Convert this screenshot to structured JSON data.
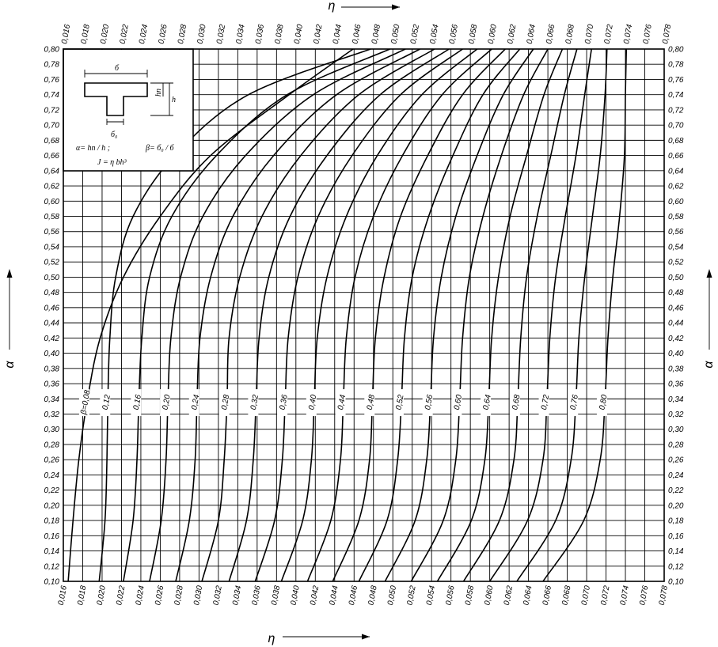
{
  "chart_data": {
    "type": "line",
    "x_axis": {
      "symbol": "η",
      "range": [
        0.016,
        0.078
      ],
      "step": 0.002,
      "tick_labels": [
        "0,016",
        "0,018",
        "0,020",
        "0,022",
        "0,024",
        "0,026",
        "0,028",
        "0,030",
        "0,032",
        "0,034",
        "0,036",
        "0,038",
        "0,040",
        "0,042",
        "0,044",
        "0,046",
        "0,048",
        "0,050",
        "0,052",
        "0,054",
        "0,056",
        "0,058",
        "0,060",
        "0,062",
        "0,064",
        "0,066",
        "0,068",
        "0,070",
        "0,072",
        "0,074",
        "0,076",
        "0,078"
      ]
    },
    "y_axis": {
      "symbol": "α",
      "range": [
        0.1,
        0.8
      ],
      "step": 0.02,
      "tick_labels": [
        "0,10",
        "0,12",
        "0,14",
        "0,16",
        "0,18",
        "0,20",
        "0,22",
        "0,24",
        "0,26",
        "0,28",
        "0,30",
        "0,32",
        "0,34",
        "0,36",
        "0,38",
        "0,40",
        "0,42",
        "0,44",
        "0,46",
        "0,48",
        "0,50",
        "0,52",
        "0,54",
        "0,56",
        "0,58",
        "0,60",
        "0,62",
        "0,64",
        "0,66",
        "0,68",
        "0,70",
        "0,72",
        "0,74",
        "0,76",
        "0,78",
        "0,80"
      ]
    },
    "grid": true,
    "series": [
      {
        "name": "β=0,08",
        "label_value": 0.08,
        "x": [
          0.0165,
          0.017,
          0.0176,
          0.0185,
          0.0198,
          0.0222,
          0.026,
          0.0312,
          0.0393,
          0.0459
        ],
        "y": [
          0.1,
          0.18,
          0.26,
          0.34,
          0.42,
          0.5,
          0.58,
          0.66,
          0.74,
          0.8
        ]
      },
      {
        "name": "0,12",
        "label_value": 0.12,
        "x": [
          0.0197,
          0.0203,
          0.0205,
          0.0206,
          0.0208,
          0.0214,
          0.0232,
          0.0275,
          0.0351,
          0.0477
        ],
        "y": [
          0.1,
          0.18,
          0.26,
          0.34,
          0.42,
          0.5,
          0.58,
          0.66,
          0.74,
          0.8
        ]
      },
      {
        "name": "0,16",
        "label_value": 0.16,
        "x": [
          0.0222,
          0.0232,
          0.0236,
          0.0238,
          0.0241,
          0.0249,
          0.0272,
          0.0318,
          0.0391,
          0.0497
        ],
        "y": [
          0.1,
          0.18,
          0.26,
          0.34,
          0.42,
          0.5,
          0.58,
          0.66,
          0.74,
          0.8
        ]
      },
      {
        "name": "0,20",
        "label_value": 0.2,
        "x": [
          0.0249,
          0.0261,
          0.0266,
          0.0268,
          0.0271,
          0.0281,
          0.0304,
          0.0348,
          0.0418,
          0.0513
        ],
        "y": [
          0.1,
          0.18,
          0.26,
          0.34,
          0.42,
          0.5,
          0.58,
          0.66,
          0.74,
          0.8
        ]
      },
      {
        "name": "0,24",
        "label_value": 0.24,
        "x": [
          0.0276,
          0.029,
          0.0296,
          0.0298,
          0.0301,
          0.0312,
          0.0335,
          0.0377,
          0.0442,
          0.0528
        ],
        "y": [
          0.1,
          0.18,
          0.26,
          0.34,
          0.42,
          0.5,
          0.58,
          0.66,
          0.74,
          0.8
        ]
      },
      {
        "name": "0,28",
        "label_value": 0.28,
        "x": [
          0.0303,
          0.032,
          0.0326,
          0.0329,
          0.0331,
          0.0342,
          0.0365,
          0.0405,
          0.0465,
          0.0543
        ],
        "y": [
          0.1,
          0.18,
          0.26,
          0.34,
          0.42,
          0.5,
          0.58,
          0.66,
          0.74,
          0.8
        ]
      },
      {
        "name": "0,32",
        "label_value": 0.32,
        "x": [
          0.0331,
          0.0349,
          0.0356,
          0.0359,
          0.0362,
          0.0372,
          0.0394,
          0.0432,
          0.0487,
          0.0558
        ],
        "y": [
          0.1,
          0.18,
          0.26,
          0.34,
          0.42,
          0.5,
          0.58,
          0.66,
          0.74,
          0.8
        ]
      },
      {
        "name": "0,36",
        "label_value": 0.36,
        "x": [
          0.0358,
          0.0378,
          0.0386,
          0.0389,
          0.0392,
          0.0402,
          0.0423,
          0.0458,
          0.0508,
          0.0572
        ],
        "y": [
          0.1,
          0.18,
          0.26,
          0.34,
          0.42,
          0.5,
          0.58,
          0.66,
          0.74,
          0.8
        ]
      },
      {
        "name": "0,40",
        "label_value": 0.4,
        "x": [
          0.0385,
          0.0407,
          0.0416,
          0.0419,
          0.0422,
          0.0432,
          0.0452,
          0.0484,
          0.053,
          0.0587
        ],
        "y": [
          0.1,
          0.18,
          0.26,
          0.34,
          0.42,
          0.5,
          0.58,
          0.66,
          0.74,
          0.8
        ]
      },
      {
        "name": "0,44",
        "label_value": 0.44,
        "x": [
          0.0412,
          0.0436,
          0.0446,
          0.0449,
          0.0452,
          0.0461,
          0.048,
          0.051,
          0.0551,
          0.0602
        ],
        "y": [
          0.1,
          0.18,
          0.26,
          0.34,
          0.42,
          0.5,
          0.58,
          0.66,
          0.74,
          0.8
        ]
      },
      {
        "name": "0,48",
        "label_value": 0.48,
        "x": [
          0.0438,
          0.0465,
          0.0476,
          0.0479,
          0.0482,
          0.0491,
          0.0508,
          0.0536,
          0.0572,
          0.0616
        ],
        "y": [
          0.1,
          0.18,
          0.26,
          0.34,
          0.42,
          0.5,
          0.58,
          0.66,
          0.74,
          0.8
        ]
      },
      {
        "name": "0,52",
        "label_value": 0.52,
        "x": [
          0.0465,
          0.0494,
          0.0505,
          0.0509,
          0.0512,
          0.052,
          0.0537,
          0.0562,
          0.0593,
          0.0631
        ],
        "y": [
          0.1,
          0.18,
          0.26,
          0.34,
          0.42,
          0.5,
          0.58,
          0.66,
          0.74,
          0.8
        ]
      },
      {
        "name": "0,56",
        "label_value": 0.56,
        "x": [
          0.0492,
          0.0523,
          0.0535,
          0.0539,
          0.0542,
          0.055,
          0.0565,
          0.0587,
          0.0614,
          0.0645
        ],
        "y": [
          0.1,
          0.18,
          0.26,
          0.34,
          0.42,
          0.5,
          0.58,
          0.66,
          0.74,
          0.8
        ]
      },
      {
        "name": "0,60",
        "label_value": 0.6,
        "x": [
          0.0519,
          0.0552,
          0.0565,
          0.0569,
          0.0572,
          0.0579,
          0.0593,
          0.0612,
          0.0635,
          0.066
        ],
        "y": [
          0.1,
          0.18,
          0.26,
          0.34,
          0.42,
          0.5,
          0.58,
          0.66,
          0.74,
          0.8
        ]
      },
      {
        "name": "0,64",
        "label_value": 0.64,
        "x": [
          0.0546,
          0.0581,
          0.0595,
          0.0599,
          0.0602,
          0.0609,
          0.0621,
          0.0638,
          0.0656,
          0.0675
        ],
        "y": [
          0.1,
          0.18,
          0.26,
          0.34,
          0.42,
          0.5,
          0.58,
          0.66,
          0.74,
          0.8
        ]
      },
      {
        "name": "0,68",
        "label_value": 0.68,
        "x": [
          0.0573,
          0.061,
          0.0625,
          0.0629,
          0.0632,
          0.0638,
          0.0649,
          0.0663,
          0.0677,
          0.069
        ],
        "y": [
          0.1,
          0.18,
          0.26,
          0.34,
          0.42,
          0.5,
          0.58,
          0.66,
          0.74,
          0.8
        ]
      },
      {
        "name": "0,72",
        "label_value": 0.72,
        "x": [
          0.06,
          0.0639,
          0.0655,
          0.0659,
          0.0662,
          0.0668,
          0.0678,
          0.0689,
          0.0698,
          0.0705
        ],
        "y": [
          0.1,
          0.18,
          0.26,
          0.34,
          0.42,
          0.5,
          0.58,
          0.66,
          0.74,
          0.8
        ]
      },
      {
        "name": "0,76",
        "label_value": 0.76,
        "x": [
          0.0628,
          0.0668,
          0.0684,
          0.0689,
          0.0692,
          0.0698,
          0.0706,
          0.0714,
          0.0719,
          0.0721
        ],
        "y": [
          0.1,
          0.18,
          0.26,
          0.34,
          0.42,
          0.5,
          0.58,
          0.66,
          0.74,
          0.8
        ]
      },
      {
        "name": "0,80",
        "label_value": 0.8,
        "x": [
          0.0655,
          0.0697,
          0.0714,
          0.0719,
          0.0722,
          0.0727,
          0.0734,
          0.0739,
          0.074,
          0.0741
        ],
        "y": [
          0.1,
          0.18,
          0.26,
          0.34,
          0.42,
          0.5,
          0.58,
          0.66,
          0.74,
          0.8
        ]
      }
    ],
    "inset": {
      "dimension_b": "б",
      "dimension_h": "h",
      "dimension_hn": "hп",
      "dimension_b0": "б₀",
      "formula_alpha": "α= hп / h ;",
      "formula_beta": "β= б₀ / б",
      "formula_j": "J = η bh³"
    }
  }
}
